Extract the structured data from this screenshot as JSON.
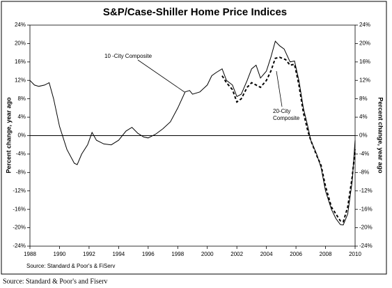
{
  "chart_data": {
    "type": "line",
    "title": "S&P/Case-Shiller Home Price Indices",
    "y_label": "Percent change, year ago",
    "y2_label": "Percent change, year ago",
    "source": "Source: Standard & Poor's & FiServ",
    "footnote": "Source: Standard & Poor's and Fiserv",
    "xlim": [
      1988,
      2010
    ],
    "xticks": [
      1988,
      1990,
      1992,
      1994,
      1996,
      1998,
      2000,
      2002,
      2004,
      2006,
      2008,
      2010
    ],
    "ylim": [
      -24,
      24
    ],
    "yticks": [
      {
        "value": -24,
        "label": "-24%"
      },
      {
        "value": -20,
        "label": "-20%"
      },
      {
        "value": -16,
        "label": "-16%"
      },
      {
        "value": -12,
        "label": "-12%"
      },
      {
        "value": -8,
        "label": "-8%"
      },
      {
        "value": -4,
        "label": "-4%"
      },
      {
        "value": 0,
        "label": "0%"
      },
      {
        "value": 4,
        "label": "4%"
      },
      {
        "value": 8,
        "label": "8%"
      },
      {
        "value": 12,
        "label": "12%"
      },
      {
        "value": 16,
        "label": "16%"
      },
      {
        "value": 20,
        "label": "20%"
      },
      {
        "value": 24,
        "label": "24%"
      }
    ],
    "y2lim": [
      -24,
      24
    ],
    "y2ticks": [
      {
        "value": -24,
        "label": "-24%"
      },
      {
        "value": -20,
        "label": "-20%"
      },
      {
        "value": -16,
        "label": "-16%"
      },
      {
        "value": -12,
        "label": "-12%"
      },
      {
        "value": -8,
        "label": "-8%"
      },
      {
        "value": -4,
        "label": "-4%"
      },
      {
        "value": 0,
        "label": "0%"
      },
      {
        "value": 4,
        "label": "4%"
      },
      {
        "value": 8,
        "label": "8%"
      },
      {
        "value": 12,
        "label": "12%"
      },
      {
        "value": 16,
        "label": "16%"
      },
      {
        "value": 20,
        "label": "20%"
      },
      {
        "value": 24,
        "label": "24%"
      }
    ],
    "annotations": [
      {
        "lines": [
          "10 -City Composite"
        ]
      },
      {
        "lines": [
          "20-City",
          "Composite"
        ]
      }
    ],
    "series": [
      {
        "color": "#000000",
        "linestyle": "solid",
        "x": [
          1988.0,
          1988.3,
          1988.6,
          1989.0,
          1989.3,
          1989.6,
          1990.0,
          1990.5,
          1991.0,
          1991.2,
          1991.5,
          1991.9,
          1992.2,
          1992.5,
          1993.0,
          1993.5,
          1994.0,
          1994.5,
          1994.9,
          1995.3,
          1995.7,
          1996.0,
          1996.5,
          1997.0,
          1997.5,
          1998.0,
          1998.5,
          1998.8,
          1999.0,
          1999.5,
          2000.0,
          2000.3,
          2000.6,
          2001.0,
          2001.3,
          2001.7,
          2002.0,
          2002.3,
          2002.7,
          2003.0,
          2003.3,
          2003.6,
          2004.0,
          2004.3,
          2004.6,
          2004.9,
          2005.2,
          2005.6,
          2005.9,
          2006.2,
          2006.5,
          2006.8,
          2007.0,
          2007.4,
          2007.7,
          2008.0,
          2008.4,
          2008.7,
          2009.0,
          2009.2,
          2009.5,
          2009.8,
          2010.0
        ],
        "values": [
          12,
          11,
          10.7,
          11,
          11.5,
          8,
          2,
          -3,
          -6,
          -6.3,
          -4,
          -2,
          0.7,
          -1,
          -1.8,
          -2,
          -1,
          1,
          1.8,
          0.5,
          -0.3,
          -0.5,
          0.3,
          1.5,
          3,
          6,
          9.5,
          9.8,
          9,
          9.5,
          11,
          13,
          13.7,
          14.5,
          12,
          11,
          8.5,
          9,
          12,
          14.5,
          15.3,
          12.5,
          14,
          17,
          20.5,
          19.5,
          18.8,
          16,
          16.2,
          12,
          6,
          2,
          -1,
          -4,
          -7,
          -12,
          -16,
          -18,
          -19.3,
          -19.4,
          -17,
          -10,
          -1
        ]
      },
      {
        "color": "#000000",
        "linestyle": "dashed",
        "x": [
          2001.0,
          2001.3,
          2001.7,
          2002.0,
          2002.3,
          2002.7,
          2003.0,
          2003.3,
          2003.6,
          2004.0,
          2004.3,
          2004.6,
          2004.9,
          2005.3,
          2005.6,
          2005.9,
          2006.2,
          2006.5,
          2006.8,
          2007.0,
          2007.4,
          2007.7,
          2008.0,
          2008.4,
          2008.7,
          2009.0,
          2009.2,
          2009.5,
          2009.8,
          2010.0
        ],
        "values": [
          13,
          11.5,
          10,
          7.3,
          8,
          10.5,
          11.5,
          11,
          10.5,
          12,
          14,
          16.8,
          17,
          16.5,
          15.3,
          15.5,
          11,
          5,
          1,
          -1,
          -4.3,
          -6.5,
          -11,
          -15.5,
          -17,
          -18.5,
          -18.7,
          -15.5,
          -9,
          -3
        ]
      }
    ]
  }
}
